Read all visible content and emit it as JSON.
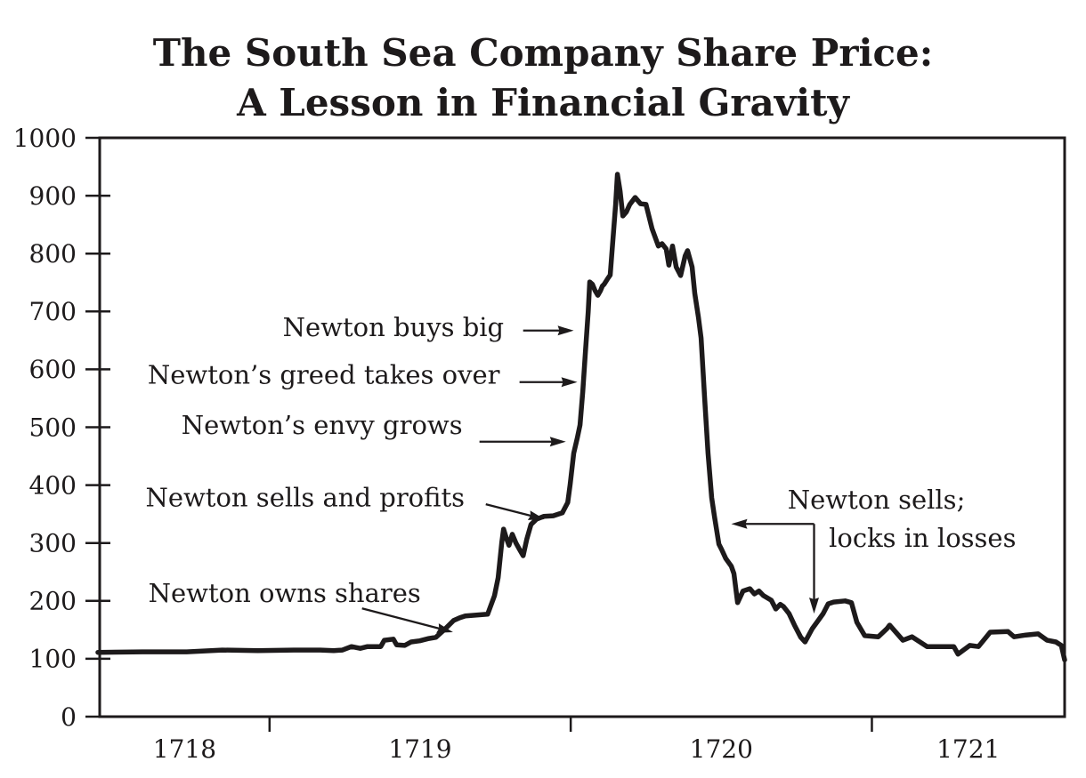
{
  "title": {
    "line1": "The South Sea Company Share Price:",
    "line2": "A Lesson in Financial Gravity"
  },
  "chart_data": {
    "type": "line",
    "title": "The South Sea Company Share Price: A Lesson in Financial Gravity",
    "xlabel": "",
    "ylabel": "",
    "grid": false,
    "legend": null,
    "line_color": "#1d1a1b",
    "background_color": "#ffffff",
    "xlim": [
      1718.436,
      1721.64
    ],
    "ylim": [
      0,
      1000
    ],
    "x_ticks": [
      1719,
      1720,
      1721
    ],
    "x_labels": [
      "1718",
      "1719",
      "1720",
      "1721"
    ],
    "y_ticks": [
      0,
      100,
      200,
      300,
      400,
      500,
      600,
      700,
      800,
      900,
      1000
    ],
    "y_tick_labels": [
      "0",
      "100",
      "200",
      "300",
      "400",
      "500",
      "600",
      "700",
      "800",
      "900",
      "1000"
    ],
    "series": [
      {
        "name": "South Sea Company share price",
        "points": [
          [
            1718.43,
            111
          ],
          [
            1718.578,
            112
          ],
          [
            1718.725,
            112
          ],
          [
            1718.843,
            115
          ],
          [
            1718.961,
            114
          ],
          [
            1719.08,
            115
          ],
          [
            1719.168,
            115
          ],
          [
            1719.213,
            114
          ],
          [
            1719.242,
            115
          ],
          [
            1719.272,
            121
          ],
          [
            1719.301,
            118
          ],
          [
            1719.325,
            121
          ],
          [
            1719.369,
            121
          ],
          [
            1719.381,
            132
          ],
          [
            1719.411,
            134
          ],
          [
            1719.422,
            124
          ],
          [
            1719.449,
            123
          ],
          [
            1719.47,
            129
          ],
          [
            1719.499,
            131
          ],
          [
            1719.529,
            135
          ],
          [
            1719.552,
            137
          ],
          [
            1719.582,
            151
          ],
          [
            1719.611,
            166
          ],
          [
            1719.632,
            171
          ],
          [
            1719.65,
            174
          ],
          [
            1719.724,
            177
          ],
          [
            1719.747,
            209
          ],
          [
            1719.759,
            240
          ],
          [
            1719.771,
            301
          ],
          [
            1719.777,
            324
          ],
          [
            1719.786,
            309
          ],
          [
            1719.795,
            296
          ],
          [
            1719.806,
            315
          ],
          [
            1719.818,
            300
          ],
          [
            1719.83,
            289
          ],
          [
            1719.842,
            278
          ],
          [
            1719.854,
            306
          ],
          [
            1719.868,
            332
          ],
          [
            1719.886,
            341
          ],
          [
            1719.91,
            346
          ],
          [
            1719.942,
            347
          ],
          [
            1719.972,
            352
          ],
          [
            1719.99,
            370
          ],
          [
            1719.998,
            401
          ],
          [
            1720.01,
            455
          ],
          [
            1720.022,
            482
          ],
          [
            1720.031,
            504
          ],
          [
            1720.04,
            562
          ],
          [
            1720.049,
            631
          ],
          [
            1720.058,
            700
          ],
          [
            1720.063,
            751
          ],
          [
            1720.072,
            747
          ],
          [
            1720.081,
            736
          ],
          [
            1720.09,
            728
          ],
          [
            1720.099,
            736
          ],
          [
            1720.105,
            744
          ],
          [
            1720.111,
            747
          ],
          [
            1720.123,
            757
          ],
          [
            1720.131,
            763
          ],
          [
            1720.14,
            823
          ],
          [
            1720.149,
            885
          ],
          [
            1720.155,
            937
          ],
          [
            1720.164,
            908
          ],
          [
            1720.173,
            865
          ],
          [
            1720.185,
            872
          ],
          [
            1720.196,
            885
          ],
          [
            1720.214,
            897
          ],
          [
            1720.232,
            886
          ],
          [
            1720.25,
            885
          ],
          [
            1720.27,
            843
          ],
          [
            1720.291,
            813
          ],
          [
            1720.303,
            817
          ],
          [
            1720.317,
            808
          ],
          [
            1720.326,
            780
          ],
          [
            1720.338,
            813
          ],
          [
            1720.35,
            777
          ],
          [
            1720.365,
            762
          ],
          [
            1720.38,
            796
          ],
          [
            1720.388,
            805
          ],
          [
            1720.403,
            777
          ],
          [
            1720.412,
            731
          ],
          [
            1720.424,
            690
          ],
          [
            1720.433,
            654
          ],
          [
            1720.445,
            547
          ],
          [
            1720.456,
            455
          ],
          [
            1720.468,
            378
          ],
          [
            1720.477,
            347
          ],
          [
            1720.492,
            298
          ],
          [
            1720.501,
            289
          ],
          [
            1720.515,
            273
          ],
          [
            1720.533,
            260
          ],
          [
            1720.542,
            247
          ],
          [
            1720.554,
            197
          ],
          [
            1720.572,
            217
          ],
          [
            1720.595,
            221
          ],
          [
            1720.61,
            212
          ],
          [
            1720.625,
            217
          ],
          [
            1720.64,
            209
          ],
          [
            1720.666,
            201
          ],
          [
            1720.681,
            186
          ],
          [
            1720.696,
            194
          ],
          [
            1720.707,
            190
          ],
          [
            1720.725,
            178
          ],
          [
            1720.743,
            158
          ],
          [
            1720.764,
            137
          ],
          [
            1720.778,
            129
          ],
          [
            1720.802,
            152
          ],
          [
            1720.823,
            167
          ],
          [
            1720.838,
            178
          ],
          [
            1720.855,
            195
          ],
          [
            1720.873,
            198
          ],
          [
            1720.911,
            200
          ],
          [
            1720.932,
            197
          ],
          [
            1720.95,
            163
          ],
          [
            1720.976,
            140
          ],
          [
            1721.021,
            138
          ],
          [
            1721.05,
            152
          ],
          [
            1721.059,
            158
          ],
          [
            1721.103,
            132
          ],
          [
            1721.133,
            138
          ],
          [
            1721.183,
            121
          ],
          [
            1721.272,
            121
          ],
          [
            1721.286,
            108
          ],
          [
            1721.325,
            123
          ],
          [
            1721.354,
            121
          ],
          [
            1721.393,
            146
          ],
          [
            1721.452,
            147
          ],
          [
            1721.472,
            138
          ],
          [
            1721.511,
            141
          ],
          [
            1721.552,
            143
          ],
          [
            1721.582,
            132
          ],
          [
            1721.611,
            129
          ],
          [
            1721.629,
            123
          ],
          [
            1721.64,
            98
          ]
        ]
      }
    ],
    "annotations": {
      "labels": [
        {
          "id": "owns-shares",
          "text": "Newton owns shares",
          "x": 1719.05,
          "y": 214
        },
        {
          "id": "sells-profits",
          "text": "Newton sells and profits",
          "x": 1719.118,
          "y": 379
        },
        {
          "id": "envy-grows",
          "text": "Newton’s envy grows",
          "x": 1719.174,
          "y": 504
        },
        {
          "id": "greed-takes",
          "text": "Newton’s greed takes over",
          "x": 1719.18,
          "y": 591
        },
        {
          "id": "buys-big",
          "text": "Newton buys big",
          "x": 1719.411,
          "y": 673
        },
        {
          "id": "sells-locks-1",
          "text": "Newton sells;",
          "x": 1721.015,
          "y": 375
        },
        {
          "id": "sells-locks-2",
          "text": "locks in losses",
          "x": 1721.168,
          "y": 309
        }
      ],
      "arrows": [
        {
          "id": "owns-shares-arrow",
          "x1": 1719.307,
          "y1": 187,
          "x2": 1719.609,
          "y2": 146
        },
        {
          "id": "sells-profits-arrow",
          "x1": 1719.718,
          "y1": 367,
          "x2": 1719.913,
          "y2": 341
        },
        {
          "id": "envy-grows-arrow",
          "x1": 1719.697,
          "y1": 475,
          "x2": 1719.984,
          "y2": 475
        },
        {
          "id": "greed-takes-arrow",
          "x1": 1719.83,
          "y1": 578,
          "x2": 1720.022,
          "y2": 578
        },
        {
          "id": "buys-big-arrow",
          "x1": 1719.842,
          "y1": 667,
          "x2": 1720.01,
          "y2": 667
        },
        {
          "id": "sells-locks-arrow-horizontal",
          "x1": 1720.808,
          "y1": 333,
          "x2": 1720.533,
          "y2": 333
        },
        {
          "id": "sells-locks-arrow-vertical",
          "x1": 1720.808,
          "y1": 333,
          "x2": 1720.808,
          "y2": 178
        }
      ]
    }
  }
}
